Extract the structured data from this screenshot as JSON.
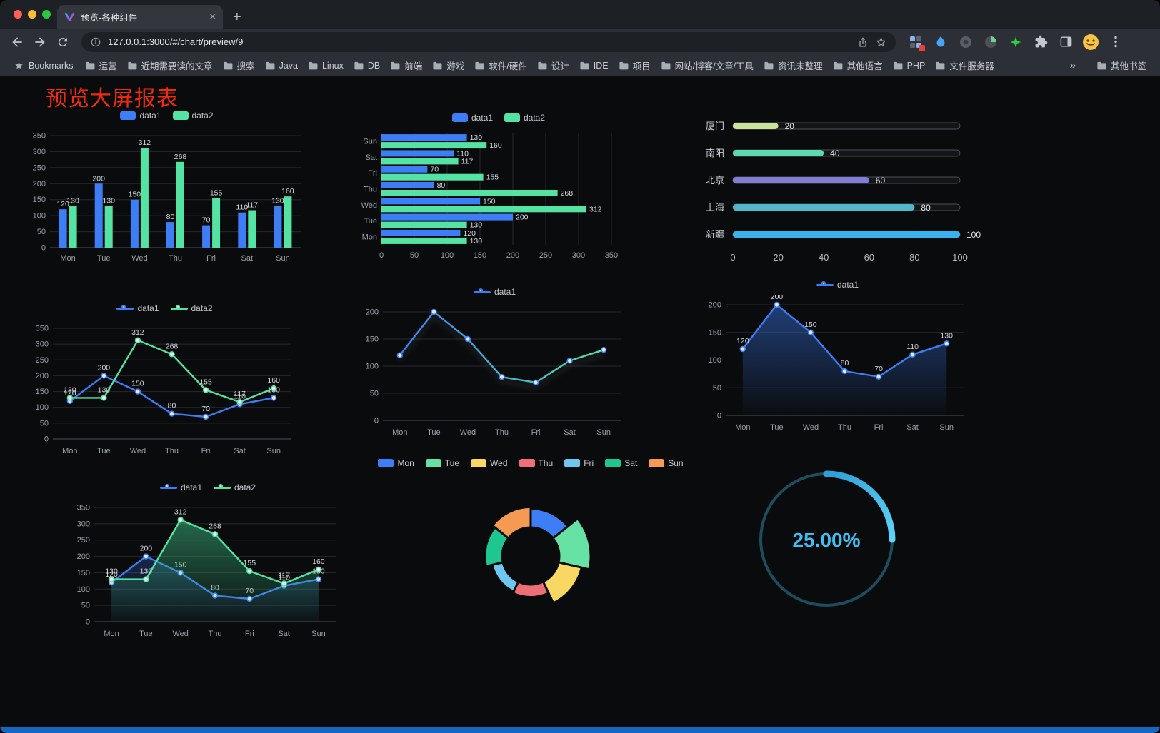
{
  "browser": {
    "tab_title": "预览-各种组件",
    "close_tab_label": "×",
    "new_tab_label": "+",
    "url": "127.0.0.1:3000/#/chart/preview/9",
    "bookmarks_label": "Bookmarks",
    "bookmark_folders": [
      "运营",
      "近期需要读的文章",
      "搜索",
      "Java",
      "Linux",
      "DB",
      "前端",
      "游戏",
      "软件/硬件",
      "设计",
      "IDE",
      "项目",
      "网站/博客/文章/工具",
      "资讯未整理",
      "其他语言",
      "PHP",
      "文件服务器"
    ],
    "bookmarks_overflow": "»",
    "other_bookmarks_label": "其他书签"
  },
  "page": {
    "title": "预览大屏报表",
    "title_color": "#f32b0d",
    "background": "#0a0b0d",
    "footer_bar_color": "#1766c2"
  },
  "chart_data": [
    {
      "id": "bar-grouped",
      "type": "bar",
      "orientation": "vertical",
      "legend": {
        "marker": "rect",
        "position": "top"
      },
      "categories": [
        "Mon",
        "Tue",
        "Wed",
        "Thu",
        "Fri",
        "Sat",
        "Sun"
      ],
      "series": [
        {
          "name": "data1",
          "color": "#3d7ef7",
          "values": [
            120,
            200,
            150,
            80,
            70,
            110,
            130
          ]
        },
        {
          "name": "data2",
          "color": "#54e3a2",
          "values": [
            130,
            130,
            312,
            268,
            155,
            117,
            160
          ]
        }
      ],
      "ylim": [
        0,
        350
      ],
      "ystep": 50,
      "value_labels": true,
      "grid": true
    },
    {
      "id": "bar-horizontal",
      "type": "bar",
      "orientation": "horizontal",
      "legend": {
        "marker": "rect",
        "position": "top"
      },
      "categories": [
        "Mon",
        "Tue",
        "Wed",
        "Thu",
        "Fri",
        "Sat",
        "Sun"
      ],
      "series": [
        {
          "name": "data1",
          "color": "#3d7ef7",
          "values": [
            120,
            200,
            150,
            80,
            70,
            110,
            130
          ]
        },
        {
          "name": "data2",
          "color": "#54e3a2",
          "values": [
            130,
            130,
            312,
            268,
            155,
            117,
            160
          ]
        }
      ],
      "xlim": [
        0,
        350
      ],
      "xstep": 50,
      "value_labels": true,
      "grid": true
    },
    {
      "id": "progress-bars",
      "type": "progress",
      "items": [
        {
          "label": "厦门",
          "value": 20,
          "color": "#c8e59b"
        },
        {
          "label": "南阳",
          "value": 40,
          "color": "#5dd9b0"
        },
        {
          "label": "北京",
          "value": 60,
          "color": "#817dd7"
        },
        {
          "label": "上海",
          "value": 80,
          "color": "#54b6c9"
        },
        {
          "label": "新疆",
          "value": 100,
          "color": "#38b3ee"
        }
      ],
      "xlim": [
        0,
        100
      ],
      "xstep": 20
    },
    {
      "id": "line-two",
      "type": "line",
      "legend": {
        "marker": "line",
        "position": "top"
      },
      "categories": [
        "Mon",
        "Tue",
        "Wed",
        "Thu",
        "Fri",
        "Sat",
        "Sun"
      ],
      "series": [
        {
          "name": "data1",
          "color": "#3d7ef7",
          "values": [
            120,
            200,
            150,
            80,
            70,
            110,
            130
          ]
        },
        {
          "name": "data2",
          "color": "#54e3a2",
          "values": [
            130,
            130,
            312,
            268,
            155,
            117,
            160
          ]
        }
      ],
      "ylim": [
        0,
        350
      ],
      "ystep": 50,
      "value_labels": true,
      "grid": true
    },
    {
      "id": "line-gradient",
      "type": "line",
      "legend": {
        "marker": "line",
        "position": "top"
      },
      "categories": [
        "Mon",
        "Tue",
        "Wed",
        "Thu",
        "Fri",
        "Sat",
        "Sun"
      ],
      "series": [
        {
          "name": "data1",
          "color": "#3d7ef7",
          "gradient": [
            "#3d7ef7",
            "#54e3a2"
          ],
          "shadow": true,
          "values": [
            120,
            200,
            150,
            80,
            70,
            110,
            130
          ]
        }
      ],
      "ylim": [
        0,
        200
      ],
      "ystep": 50,
      "value_labels": false,
      "grid": true
    },
    {
      "id": "area-single",
      "type": "line",
      "legend": {
        "marker": "line",
        "position": "top"
      },
      "categories": [
        "Mon",
        "Tue",
        "Wed",
        "Thu",
        "Fri",
        "Sat",
        "Sun"
      ],
      "series": [
        {
          "name": "data1",
          "color": "#3d7ef7",
          "area": [
            "rgba(61,126,247,0.45)",
            "rgba(61,126,247,0.02)"
          ],
          "values": [
            120,
            200,
            150,
            80,
            70,
            110,
            130
          ]
        }
      ],
      "ylim": [
        0,
        200
      ],
      "ystep": 50,
      "value_labels": true,
      "grid": true
    },
    {
      "id": "area-two",
      "type": "line",
      "legend": {
        "marker": "line",
        "position": "top"
      },
      "categories": [
        "Mon",
        "Tue",
        "Wed",
        "Thu",
        "Fri",
        "Sat",
        "Sun"
      ],
      "series": [
        {
          "name": "data1",
          "color": "#3d7ef7",
          "area": [
            "rgba(61,126,247,0.25)",
            "rgba(61,126,247,0.02)"
          ],
          "values": [
            120,
            200,
            150,
            80,
            70,
            110,
            130
          ]
        },
        {
          "name": "data2",
          "color": "#54e3a2",
          "area": [
            "rgba(63,196,137,0.5)",
            "rgba(63,196,137,0.03)"
          ],
          "values": [
            130,
            130,
            312,
            268,
            155,
            117,
            160
          ]
        }
      ],
      "ylim": [
        0,
        350
      ],
      "ystep": 50,
      "value_labels": true,
      "grid": true
    },
    {
      "id": "rose-pie",
      "type": "rose",
      "legend": {
        "marker": "rect",
        "position": "top"
      },
      "categories": [
        "Mon",
        "Tue",
        "Wed",
        "Thu",
        "Fri",
        "Sat",
        "Sun"
      ],
      "values": [
        120,
        200,
        150,
        80,
        70,
        110,
        130
      ],
      "colors": [
        "#3d7ef7",
        "#67e2a5",
        "#f8d763",
        "#ee6e76",
        "#6ec7f0",
        "#1ec78f",
        "#f59a52"
      ]
    },
    {
      "id": "gauge-progress",
      "type": "gauge",
      "value": 25,
      "label": "25.00%",
      "color": "#38b9f0",
      "track_color": "#1e4d5d"
    }
  ]
}
